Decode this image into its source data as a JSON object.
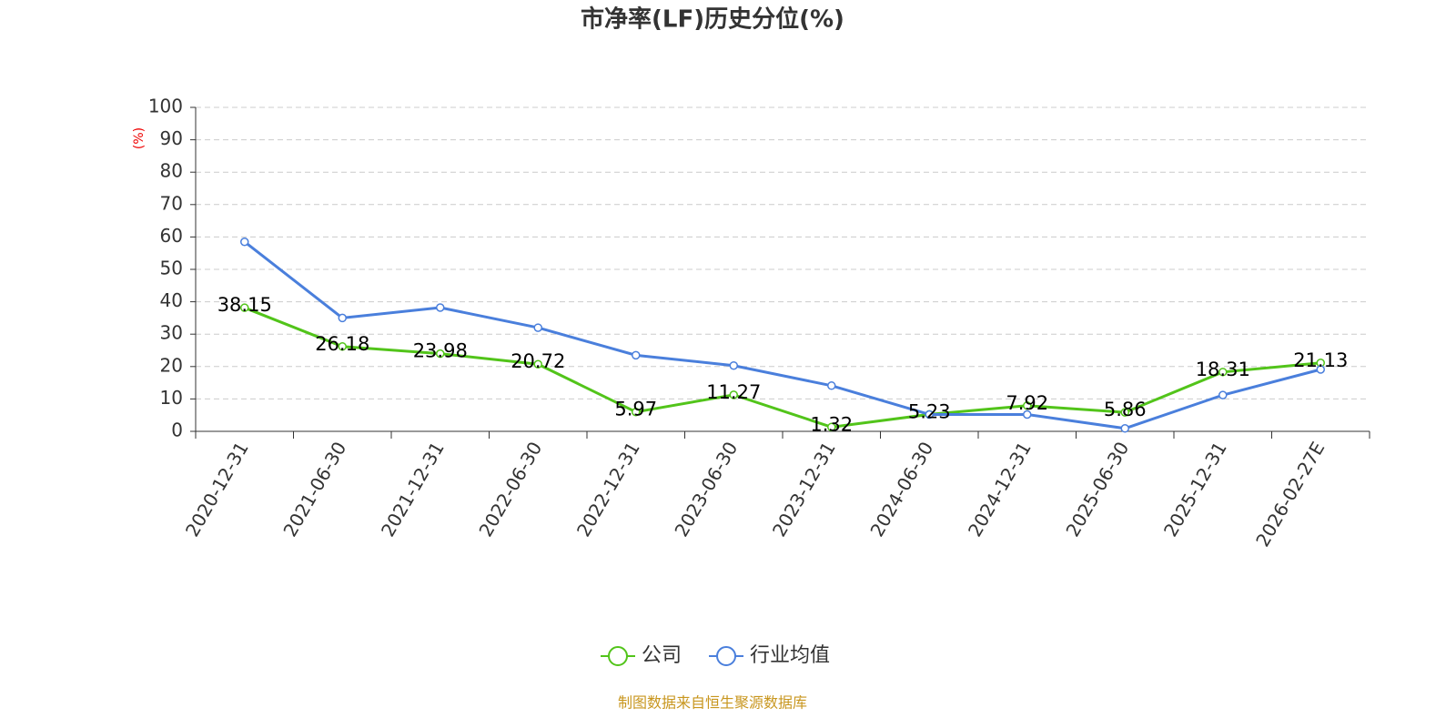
{
  "chart_data": {
    "type": "line",
    "title": "市净率(LF)历史分位(%)",
    "y_label": "(%)",
    "categories": [
      "2020-12-31",
      "2021-06-30",
      "2021-12-31",
      "2022-06-30",
      "2022-12-31",
      "2023-06-30",
      "2023-12-31",
      "2024-06-30",
      "2024-12-31",
      "2025-06-30",
      "2025-12-31",
      "2026-02-27E"
    ],
    "series": [
      {
        "name": "公司",
        "color": "#52c41a",
        "values": [
          38.15,
          26.18,
          23.98,
          20.72,
          5.97,
          11.27,
          1.32,
          5.23,
          7.92,
          5.86,
          18.31,
          21.13
        ],
        "show_labels": true
      },
      {
        "name": "行业均值",
        "color": "#4a7fdc",
        "values": [
          58.5,
          35,
          38.2,
          32,
          23.5,
          20.3,
          14.1,
          5.2,
          5.2,
          0.9,
          11.2,
          19.1
        ],
        "show_labels": false
      }
    ],
    "ylim": [
      0,
      100
    ],
    "yticks": [
      0,
      10,
      20,
      30,
      40,
      50,
      60,
      70,
      80,
      90,
      100
    ],
    "grid": true,
    "source": "制图数据来自恒生聚源数据库"
  }
}
